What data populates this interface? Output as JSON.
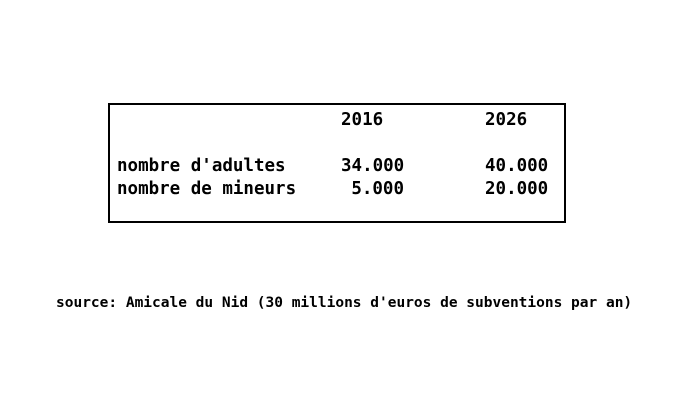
{
  "page": {
    "background_color": "#ffffff",
    "text_color": "#000000",
    "border_color": "#000000"
  },
  "table": {
    "headers": [
      "2016",
      "2026"
    ],
    "rows": [
      {
        "label": "nombre d'adultes",
        "values": [
          "34.000",
          "40.000"
        ]
      },
      {
        "label": "nombre de mineurs",
        "values": [
          "5.000",
          "20.000"
        ]
      }
    ]
  },
  "source_line": "source: Amicale du Nid (30 millions d'euros de subventions par an)",
  "chart_data": {
    "type": "table",
    "title": "",
    "categories": [
      "2016",
      "2026"
    ],
    "series": [
      {
        "name": "nombre d'adultes",
        "values": [
          34000,
          40000
        ]
      },
      {
        "name": "nombre de mineurs",
        "values": [
          5000,
          20000
        ]
      }
    ],
    "number_format": "dot as thousands separator (fr)",
    "source": "Amicale du Nid (30 millions d'euros de subventions par an)",
    "layout": "bordered box, column headers 2016/2026, right-aligned values, source caption below"
  }
}
